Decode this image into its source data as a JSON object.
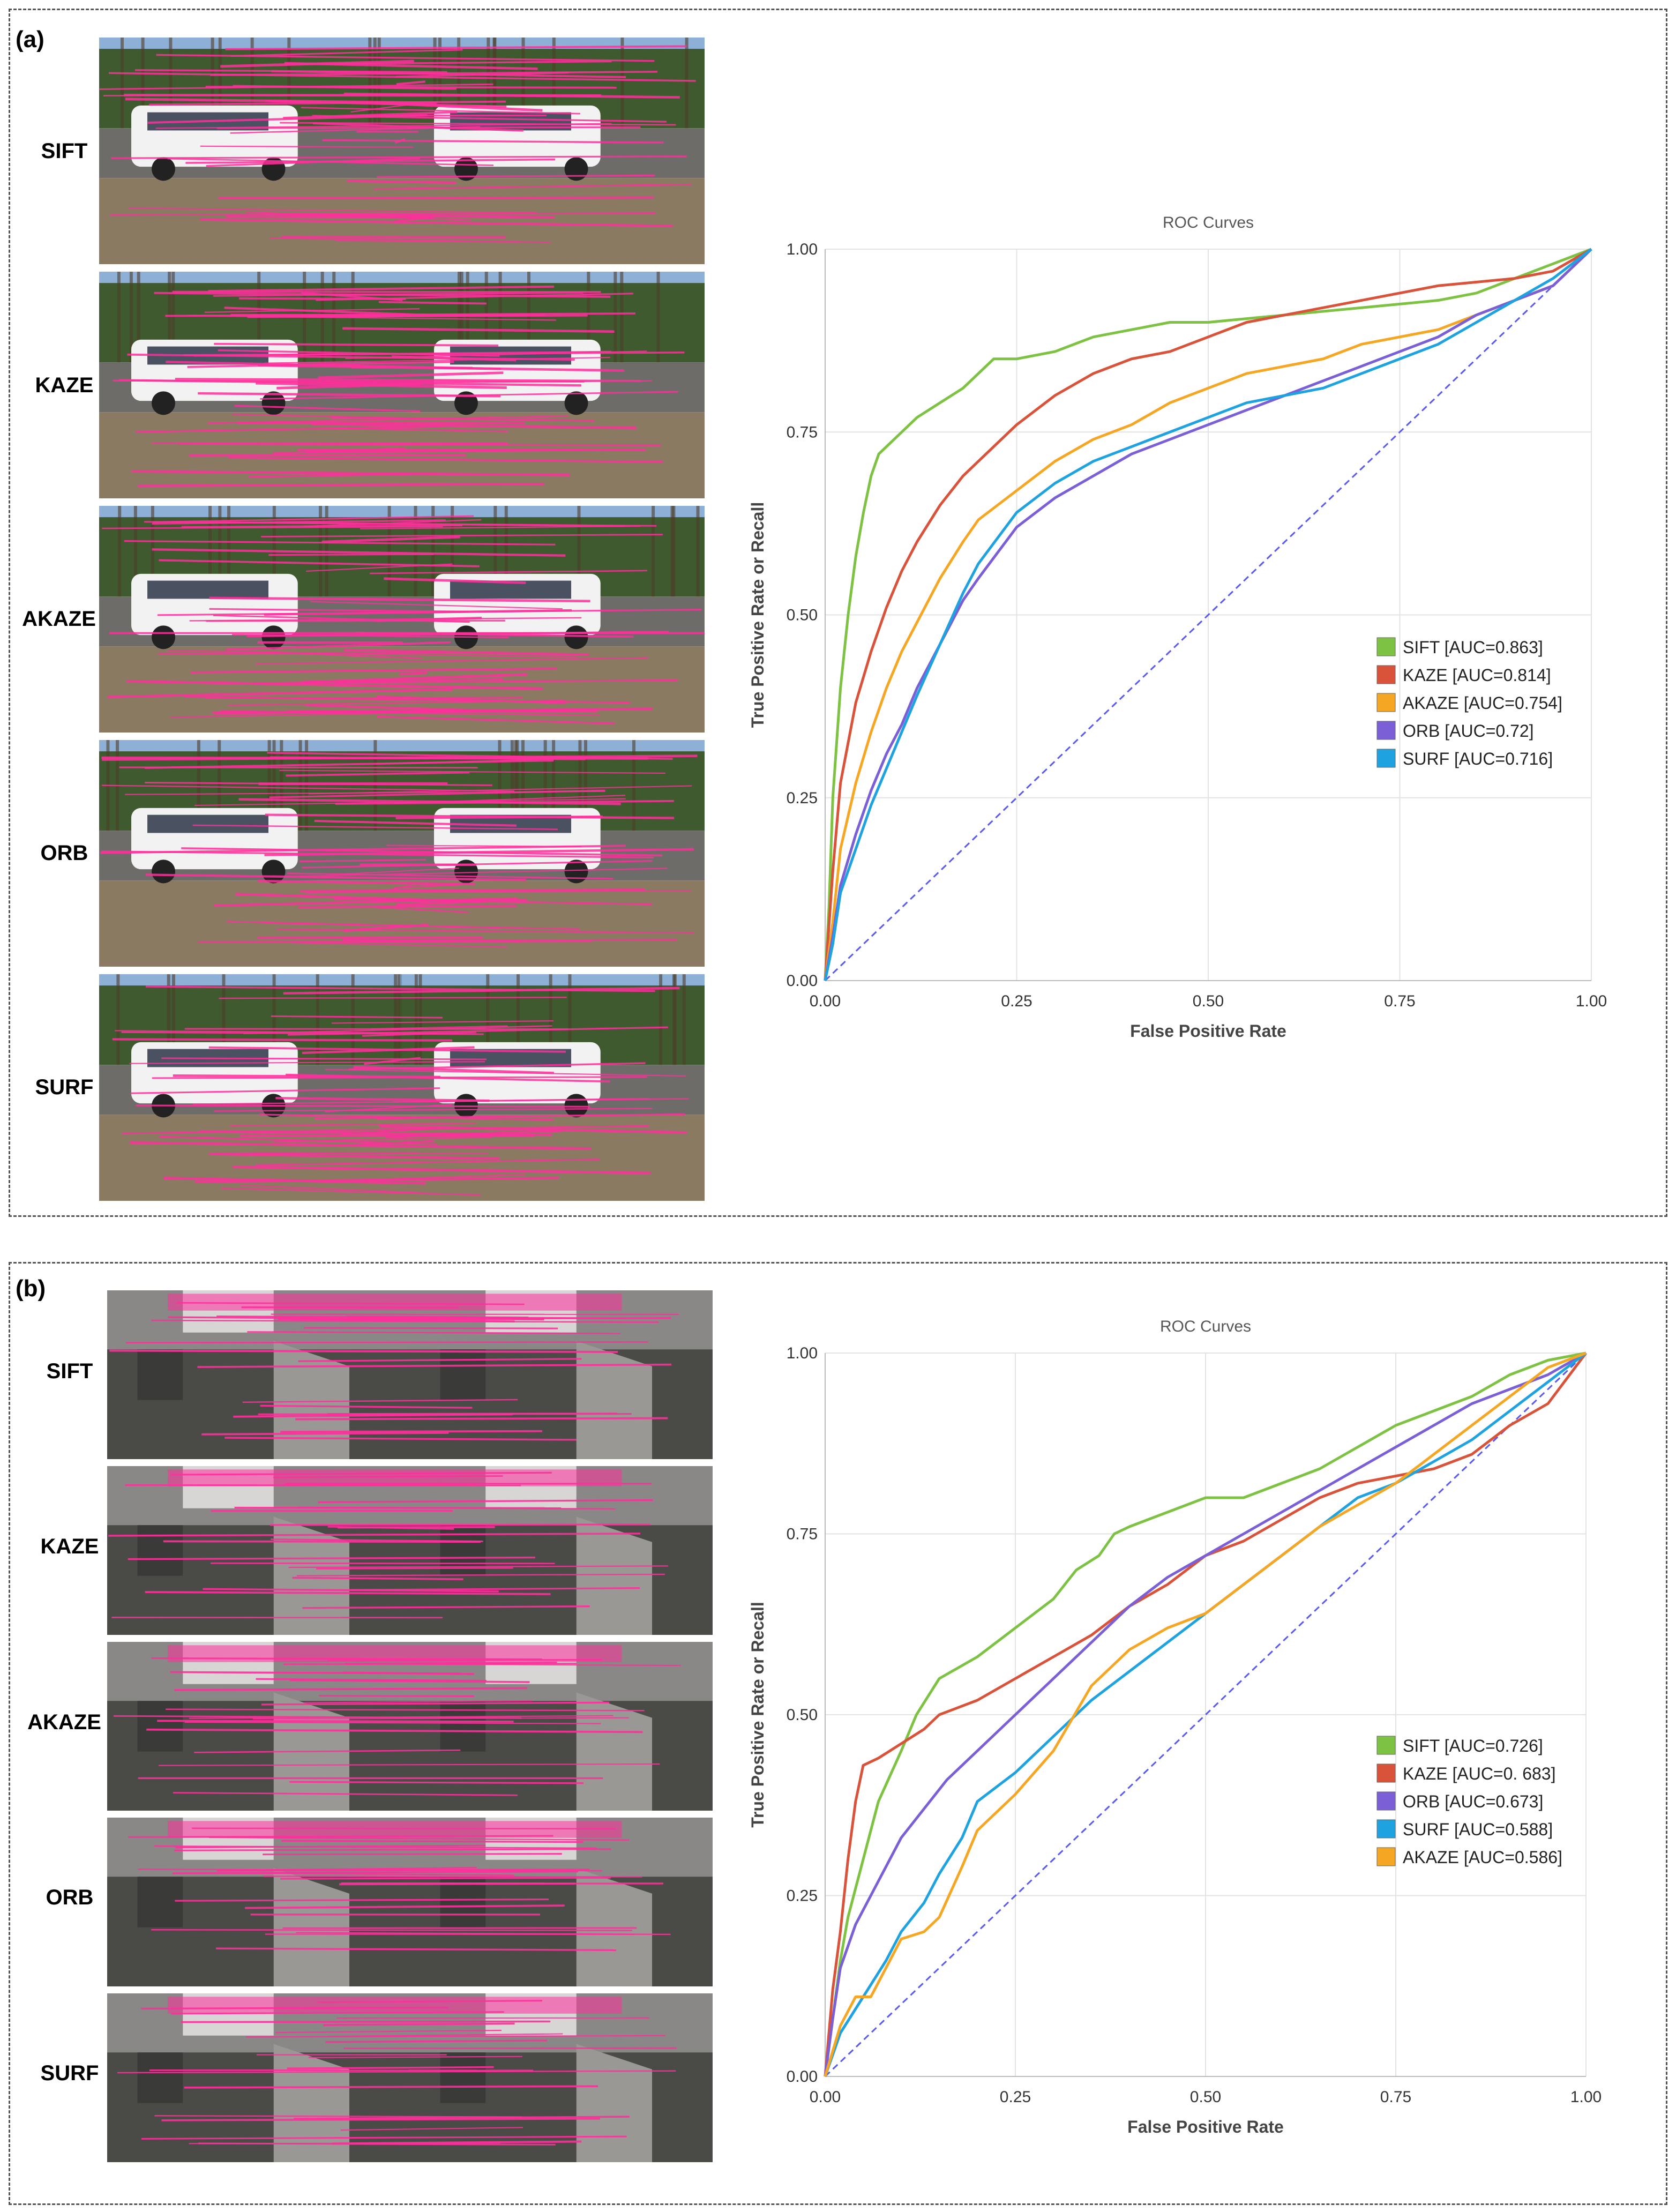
{
  "panels": [
    {
      "label": "(a)",
      "rows": [
        "SIFT",
        "KAZE",
        "AKAZE",
        "ORB",
        "SURF"
      ],
      "scene": "outdoor"
    },
    {
      "label": "(b)",
      "rows": [
        "SIFT",
        "KAZE",
        "AKAZE",
        "ORB",
        "SURF"
      ],
      "scene": "indoor"
    }
  ],
  "colors": {
    "SIFT": "#7dc242",
    "KAZE": "#d9533a",
    "AKAZE": "#f5a623",
    "ORB": "#7b5fd6",
    "SURF": "#1fa2e0",
    "diagonal": "#5a5af0",
    "match_line": "#ff2f9c"
  },
  "chart_data": [
    {
      "type": "line",
      "title": "ROC Curves",
      "xlabel": "False Positive Rate",
      "ylabel": "True Positive Rate or Recall",
      "xlim": [
        0,
        1
      ],
      "ylim": [
        0,
        1
      ],
      "xticks": [
        "0.00",
        "0.25",
        "0.50",
        "0.75",
        "1.00"
      ],
      "yticks": [
        "0.00",
        "0.25",
        "0.50",
        "0.75",
        "1.00"
      ],
      "grid": true,
      "legend_position": "center-right",
      "series": [
        {
          "name": "SIFT",
          "legend": "SIFT [AUC=0.863]",
          "x": [
            0,
            0.005,
            0.01,
            0.02,
            0.03,
            0.04,
            0.05,
            0.06,
            0.07,
            0.08,
            0.1,
            0.12,
            0.15,
            0.18,
            0.2,
            0.22,
            0.25,
            0.3,
            0.35,
            0.4,
            0.45,
            0.5,
            0.6,
            0.7,
            0.8,
            0.85,
            0.9,
            0.95,
            1.0
          ],
          "y": [
            0,
            0.1,
            0.25,
            0.4,
            0.5,
            0.58,
            0.64,
            0.69,
            0.72,
            0.73,
            0.75,
            0.77,
            0.79,
            0.81,
            0.83,
            0.85,
            0.85,
            0.86,
            0.88,
            0.89,
            0.9,
            0.9,
            0.91,
            0.92,
            0.93,
            0.94,
            0.96,
            0.98,
            1.0
          ]
        },
        {
          "name": "KAZE",
          "legend": "KAZE [AUC=0.814]",
          "x": [
            0,
            0.01,
            0.02,
            0.04,
            0.06,
            0.08,
            0.1,
            0.12,
            0.15,
            0.18,
            0.2,
            0.25,
            0.3,
            0.35,
            0.4,
            0.45,
            0.5,
            0.55,
            0.6,
            0.7,
            0.8,
            0.9,
            0.95,
            1.0
          ],
          "y": [
            0,
            0.15,
            0.27,
            0.38,
            0.45,
            0.51,
            0.56,
            0.6,
            0.65,
            0.69,
            0.71,
            0.76,
            0.8,
            0.83,
            0.85,
            0.86,
            0.88,
            0.9,
            0.91,
            0.93,
            0.95,
            0.96,
            0.97,
            1.0
          ]
        },
        {
          "name": "AKAZE",
          "legend": "AKAZE [AUC=0.754]",
          "x": [
            0,
            0.01,
            0.02,
            0.04,
            0.06,
            0.08,
            0.1,
            0.12,
            0.15,
            0.18,
            0.2,
            0.25,
            0.3,
            0.35,
            0.4,
            0.45,
            0.5,
            0.55,
            0.6,
            0.65,
            0.7,
            0.8,
            0.85,
            0.9,
            0.95,
            1.0
          ],
          "y": [
            0,
            0.08,
            0.18,
            0.27,
            0.34,
            0.4,
            0.45,
            0.49,
            0.55,
            0.6,
            0.63,
            0.67,
            0.71,
            0.74,
            0.76,
            0.79,
            0.81,
            0.83,
            0.84,
            0.85,
            0.87,
            0.89,
            0.91,
            0.93,
            0.95,
            1.0
          ]
        },
        {
          "name": "ORB",
          "legend": "ORB [AUC=0.72]",
          "x": [
            0,
            0.01,
            0.02,
            0.04,
            0.06,
            0.08,
            0.1,
            0.12,
            0.15,
            0.18,
            0.2,
            0.25,
            0.3,
            0.35,
            0.4,
            0.45,
            0.5,
            0.55,
            0.6,
            0.65,
            0.7,
            0.75,
            0.8,
            0.85,
            0.9,
            0.95,
            1.0
          ],
          "y": [
            0,
            0.06,
            0.13,
            0.2,
            0.26,
            0.31,
            0.35,
            0.4,
            0.46,
            0.52,
            0.55,
            0.62,
            0.66,
            0.69,
            0.72,
            0.74,
            0.76,
            0.78,
            0.8,
            0.82,
            0.84,
            0.86,
            0.88,
            0.91,
            0.93,
            0.95,
            1.0
          ]
        },
        {
          "name": "SURF",
          "legend": "SURF [AUC=0.716]",
          "x": [
            0,
            0.01,
            0.02,
            0.04,
            0.06,
            0.08,
            0.1,
            0.12,
            0.15,
            0.18,
            0.2,
            0.25,
            0.3,
            0.35,
            0.4,
            0.45,
            0.5,
            0.55,
            0.6,
            0.65,
            0.7,
            0.75,
            0.8,
            0.85,
            0.9,
            0.95,
            1.0
          ],
          "y": [
            0,
            0.05,
            0.12,
            0.18,
            0.24,
            0.29,
            0.34,
            0.39,
            0.46,
            0.53,
            0.57,
            0.64,
            0.68,
            0.71,
            0.73,
            0.75,
            0.77,
            0.79,
            0.8,
            0.81,
            0.83,
            0.85,
            0.87,
            0.9,
            0.93,
            0.96,
            1.0
          ]
        }
      ]
    },
    {
      "type": "line",
      "title": "ROC Curves",
      "xlabel": "False Positive Rate",
      "ylabel": "True Positive Rate or Recall",
      "xlim": [
        0,
        1
      ],
      "ylim": [
        0,
        1
      ],
      "xticks": [
        "0.00",
        "0.25",
        "0.50",
        "0.75",
        "1.00"
      ],
      "yticks": [
        "0.00",
        "0.25",
        "0.50",
        "0.75",
        "1.00"
      ],
      "grid": true,
      "legend_position": "center-right",
      "series": [
        {
          "name": "SIFT",
          "legend": "SIFT [AUC=0.726]",
          "x": [
            0,
            0.01,
            0.02,
            0.03,
            0.05,
            0.07,
            0.1,
            0.12,
            0.15,
            0.2,
            0.25,
            0.3,
            0.33,
            0.36,
            0.38,
            0.4,
            0.45,
            0.5,
            0.55,
            0.6,
            0.65,
            0.7,
            0.75,
            0.8,
            0.85,
            0.9,
            0.95,
            1.0
          ],
          "y": [
            0,
            0.08,
            0.16,
            0.22,
            0.3,
            0.38,
            0.45,
            0.5,
            0.55,
            0.58,
            0.62,
            0.66,
            0.7,
            0.72,
            0.75,
            0.76,
            0.78,
            0.8,
            0.8,
            0.82,
            0.84,
            0.87,
            0.9,
            0.92,
            0.94,
            0.97,
            0.99,
            1.0
          ]
        },
        {
          "name": "KAZE",
          "legend": "KAZE [AUC=0. 683]",
          "x": [
            0,
            0.01,
            0.02,
            0.03,
            0.04,
            0.05,
            0.07,
            0.1,
            0.13,
            0.15,
            0.2,
            0.25,
            0.3,
            0.35,
            0.4,
            0.45,
            0.5,
            0.55,
            0.6,
            0.65,
            0.7,
            0.75,
            0.8,
            0.85,
            0.9,
            0.95,
            1.0
          ],
          "y": [
            0,
            0.12,
            0.2,
            0.3,
            0.38,
            0.43,
            0.44,
            0.46,
            0.48,
            0.5,
            0.52,
            0.55,
            0.58,
            0.61,
            0.65,
            0.68,
            0.72,
            0.74,
            0.77,
            0.8,
            0.82,
            0.83,
            0.84,
            0.86,
            0.9,
            0.93,
            1.0
          ]
        },
        {
          "name": "ORB",
          "legend": "ORB [AUC=0.673]",
          "x": [
            0,
            0.01,
            0.02,
            0.04,
            0.06,
            0.08,
            0.1,
            0.13,
            0.16,
            0.2,
            0.25,
            0.3,
            0.35,
            0.4,
            0.45,
            0.5,
            0.55,
            0.6,
            0.65,
            0.7,
            0.75,
            0.8,
            0.85,
            0.9,
            0.95,
            1.0
          ],
          "y": [
            0,
            0.08,
            0.15,
            0.21,
            0.25,
            0.29,
            0.33,
            0.37,
            0.41,
            0.45,
            0.5,
            0.55,
            0.6,
            0.65,
            0.69,
            0.72,
            0.75,
            0.78,
            0.81,
            0.84,
            0.87,
            0.9,
            0.93,
            0.95,
            0.97,
            1.0
          ]
        },
        {
          "name": "SURF",
          "legend": "SURF [AUC=0.588]",
          "x": [
            0,
            0.02,
            0.05,
            0.08,
            0.1,
            0.13,
            0.15,
            0.18,
            0.2,
            0.25,
            0.3,
            0.35,
            0.4,
            0.45,
            0.5,
            0.55,
            0.6,
            0.65,
            0.7,
            0.75,
            0.8,
            0.85,
            0.9,
            0.95,
            1.0
          ],
          "y": [
            0,
            0.06,
            0.11,
            0.16,
            0.2,
            0.24,
            0.28,
            0.33,
            0.38,
            0.42,
            0.47,
            0.52,
            0.56,
            0.6,
            0.64,
            0.68,
            0.72,
            0.76,
            0.8,
            0.82,
            0.85,
            0.88,
            0.92,
            0.96,
            1.0
          ]
        },
        {
          "name": "AKAZE",
          "legend": "AKAZE [AUC=0.586]",
          "x": [
            0,
            0.02,
            0.04,
            0.06,
            0.08,
            0.1,
            0.13,
            0.15,
            0.18,
            0.2,
            0.25,
            0.3,
            0.35,
            0.4,
            0.45,
            0.5,
            0.55,
            0.6,
            0.65,
            0.7,
            0.75,
            0.8,
            0.85,
            0.9,
            0.95,
            1.0
          ],
          "y": [
            0,
            0.07,
            0.11,
            0.11,
            0.15,
            0.19,
            0.2,
            0.22,
            0.29,
            0.34,
            0.39,
            0.45,
            0.54,
            0.59,
            0.62,
            0.64,
            0.68,
            0.72,
            0.76,
            0.79,
            0.82,
            0.86,
            0.9,
            0.94,
            0.98,
            1.0
          ]
        }
      ]
    }
  ]
}
